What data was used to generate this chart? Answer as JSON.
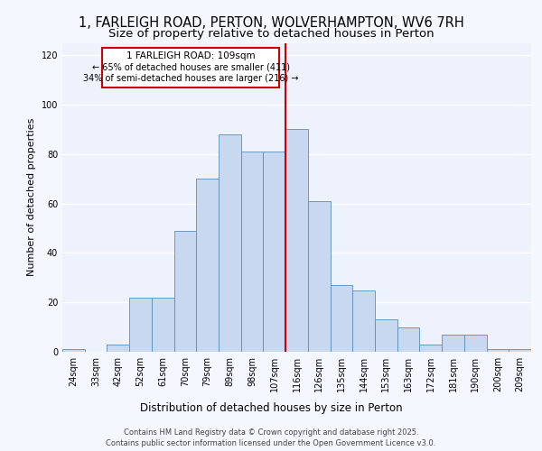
{
  "title1": "1, FARLEIGH ROAD, PERTON, WOLVERHAMPTON, WV6 7RH",
  "title2": "Size of property relative to detached houses in Perton",
  "xlabel": "Distribution of detached houses by size in Perton",
  "ylabel": "Number of detached properties",
  "categories": [
    "24sqm",
    "33sqm",
    "42sqm",
    "52sqm",
    "61sqm",
    "70sqm",
    "79sqm",
    "89sqm",
    "98sqm",
    "107sqm",
    "116sqm",
    "126sqm",
    "135sqm",
    "144sqm",
    "153sqm",
    "163sqm",
    "172sqm",
    "181sqm",
    "190sqm",
    "200sqm",
    "209sqm"
  ],
  "bar_data": [
    1,
    0,
    3,
    22,
    22,
    49,
    70,
    88,
    81,
    81,
    90,
    61,
    27,
    25,
    13,
    10,
    3,
    7,
    7,
    1,
    1
  ],
  "property_label": "1 FARLEIGH ROAD: 109sqm",
  "pct_smaller": "65% of detached houses are smaller (411)",
  "pct_larger": "34% of semi-detached houses are larger (216)",
  "bar_color": "#c8d8f0",
  "bar_edge_color": "#5b8db8",
  "vline_color": "#cc0000",
  "annotation_box_color": "#cc0000",
  "background_color": "#eef2fc",
  "grid_color": "#ffffff",
  "ylim": [
    0,
    125
  ],
  "yticks": [
    0,
    20,
    40,
    60,
    80,
    100,
    120
  ],
  "footer": "Contains HM Land Registry data © Crown copyright and database right 2025.\nContains public sector information licensed under the Open Government Licence v3.0.",
  "title1_fontsize": 10.5,
  "title2_fontsize": 9.5,
  "xlabel_fontsize": 8.5,
  "ylabel_fontsize": 8,
  "tick_fontsize": 7,
  "annotation_fontsize": 7.5,
  "footer_fontsize": 6
}
